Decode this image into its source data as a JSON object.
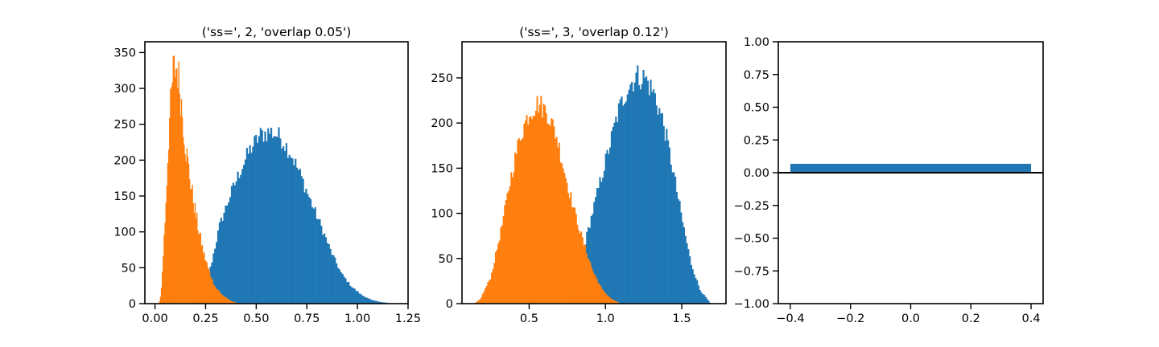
{
  "colors": {
    "blue": "#1f77b4",
    "orange": "#ff7f0e",
    "frame": "#000000"
  },
  "chart_data": [
    {
      "type": "histogram",
      "title": "('ss=', 2, 'overlap 0.05')",
      "xlim": [
        -0.05,
        1.25
      ],
      "ylim": [
        0,
        365
      ],
      "xticks": [
        0.0,
        0.25,
        0.5,
        0.75,
        1.0,
        1.25
      ],
      "xtick_labels": [
        "0.00",
        "0.25",
        "0.50",
        "0.75",
        "1.00",
        "1.25"
      ],
      "yticks": [
        0,
        50,
        100,
        150,
        200,
        250,
        300,
        350
      ],
      "ytick_labels": [
        "0",
        "50",
        "100",
        "150",
        "200",
        "250",
        "300",
        "350"
      ],
      "series": [
        {
          "color": "#1f77b4",
          "start": 0.18,
          "width": 0.0075,
          "shape": [
            [
              0.18,
              0
            ],
            [
              0.22,
              12
            ],
            [
              0.27,
              45
            ],
            [
              0.32,
              110
            ],
            [
              0.37,
              150
            ],
            [
              0.42,
              185
            ],
            [
              0.47,
              215
            ],
            [
              0.52,
              235
            ],
            [
              0.57,
              240
            ],
            [
              0.62,
              232
            ],
            [
              0.67,
              210
            ],
            [
              0.72,
              178
            ],
            [
              0.77,
              142
            ],
            [
              0.82,
              108
            ],
            [
              0.87,
              72
            ],
            [
              0.92,
              42
            ],
            [
              0.97,
              24
            ],
            [
              1.02,
              12
            ],
            [
              1.07,
              5
            ],
            [
              1.12,
              2
            ],
            [
              1.18,
              0
            ]
          ]
        },
        {
          "color": "#ff7f0e",
          "start": 0.02,
          "width": 0.0045,
          "shape": [
            [
              0.02,
              0
            ],
            [
              0.03,
              15
            ],
            [
              0.05,
              120
            ],
            [
              0.07,
              250
            ],
            [
              0.09,
              325
            ],
            [
              0.11,
              330
            ],
            [
              0.13,
              280
            ],
            [
              0.15,
              220
            ],
            [
              0.18,
              160
            ],
            [
              0.21,
              110
            ],
            [
              0.24,
              70
            ],
            [
              0.27,
              42
            ],
            [
              0.3,
              22
            ],
            [
              0.34,
              10
            ],
            [
              0.38,
              3
            ],
            [
              0.42,
              0
            ]
          ]
        }
      ]
    },
    {
      "type": "histogram",
      "title": "('ss=', 3, 'overlap 0.12')",
      "xlim": [
        0.06,
        1.79
      ],
      "ylim": [
        0,
        290
      ],
      "xticks": [
        0.5,
        1.0,
        1.5
      ],
      "xtick_labels": [
        "0.5",
        "1.0",
        "1.5"
      ],
      "yticks": [
        0,
        50,
        100,
        150,
        200,
        250
      ],
      "ytick_labels": [
        "0",
        "50",
        "100",
        "150",
        "200",
        "250"
      ],
      "series": [
        {
          "color": "#1f77b4",
          "start": 0.75,
          "width": 0.0095,
          "shape": [
            [
              0.75,
              0
            ],
            [
              0.8,
              15
            ],
            [
              0.87,
              70
            ],
            [
              0.95,
              125
            ],
            [
              1.02,
              170
            ],
            [
              1.08,
              210
            ],
            [
              1.14,
              238
            ],
            [
              1.2,
              252
            ],
            [
              1.26,
              250
            ],
            [
              1.32,
              232
            ],
            [
              1.38,
              200
            ],
            [
              1.44,
              150
            ],
            [
              1.5,
              95
            ],
            [
              1.56,
              45
            ],
            [
              1.62,
              15
            ],
            [
              1.69,
              0
            ]
          ]
        },
        {
          "color": "#ff7f0e",
          "start": 0.14,
          "width": 0.0085,
          "shape": [
            [
              0.14,
              0
            ],
            [
              0.18,
              5
            ],
            [
              0.25,
              30
            ],
            [
              0.32,
              85
            ],
            [
              0.38,
              140
            ],
            [
              0.44,
              185
            ],
            [
              0.5,
              212
            ],
            [
              0.56,
              222
            ],
            [
              0.62,
              212
            ],
            [
              0.68,
              185
            ],
            [
              0.74,
              140
            ],
            [
              0.8,
              100
            ],
            [
              0.86,
              65
            ],
            [
              0.92,
              35
            ],
            [
              0.98,
              15
            ],
            [
              1.04,
              5
            ],
            [
              1.1,
              0
            ]
          ]
        }
      ]
    },
    {
      "type": "bar",
      "xlim": [
        -0.44,
        0.44
      ],
      "ylim": [
        -1.0,
        1.0
      ],
      "xticks": [
        -0.4,
        -0.2,
        0.0,
        0.2,
        0.4
      ],
      "xtick_labels": [
        "−0.4",
        "−0.2",
        "0.0",
        "0.2",
        "0.4"
      ],
      "yticks": [
        -1.0,
        -0.75,
        -0.5,
        -0.25,
        0.0,
        0.25,
        0.5,
        0.75,
        1.0
      ],
      "ytick_labels": [
        "−1.00",
        "−0.75",
        "−0.50",
        "−0.25",
        "0.00",
        "0.25",
        "0.50",
        "0.75",
        "1.00"
      ],
      "bars": [
        {
          "x": 0.0,
          "width": 0.8,
          "value": 0.068,
          "color": "#1f77b4"
        }
      ],
      "hline": 0.0
    }
  ]
}
